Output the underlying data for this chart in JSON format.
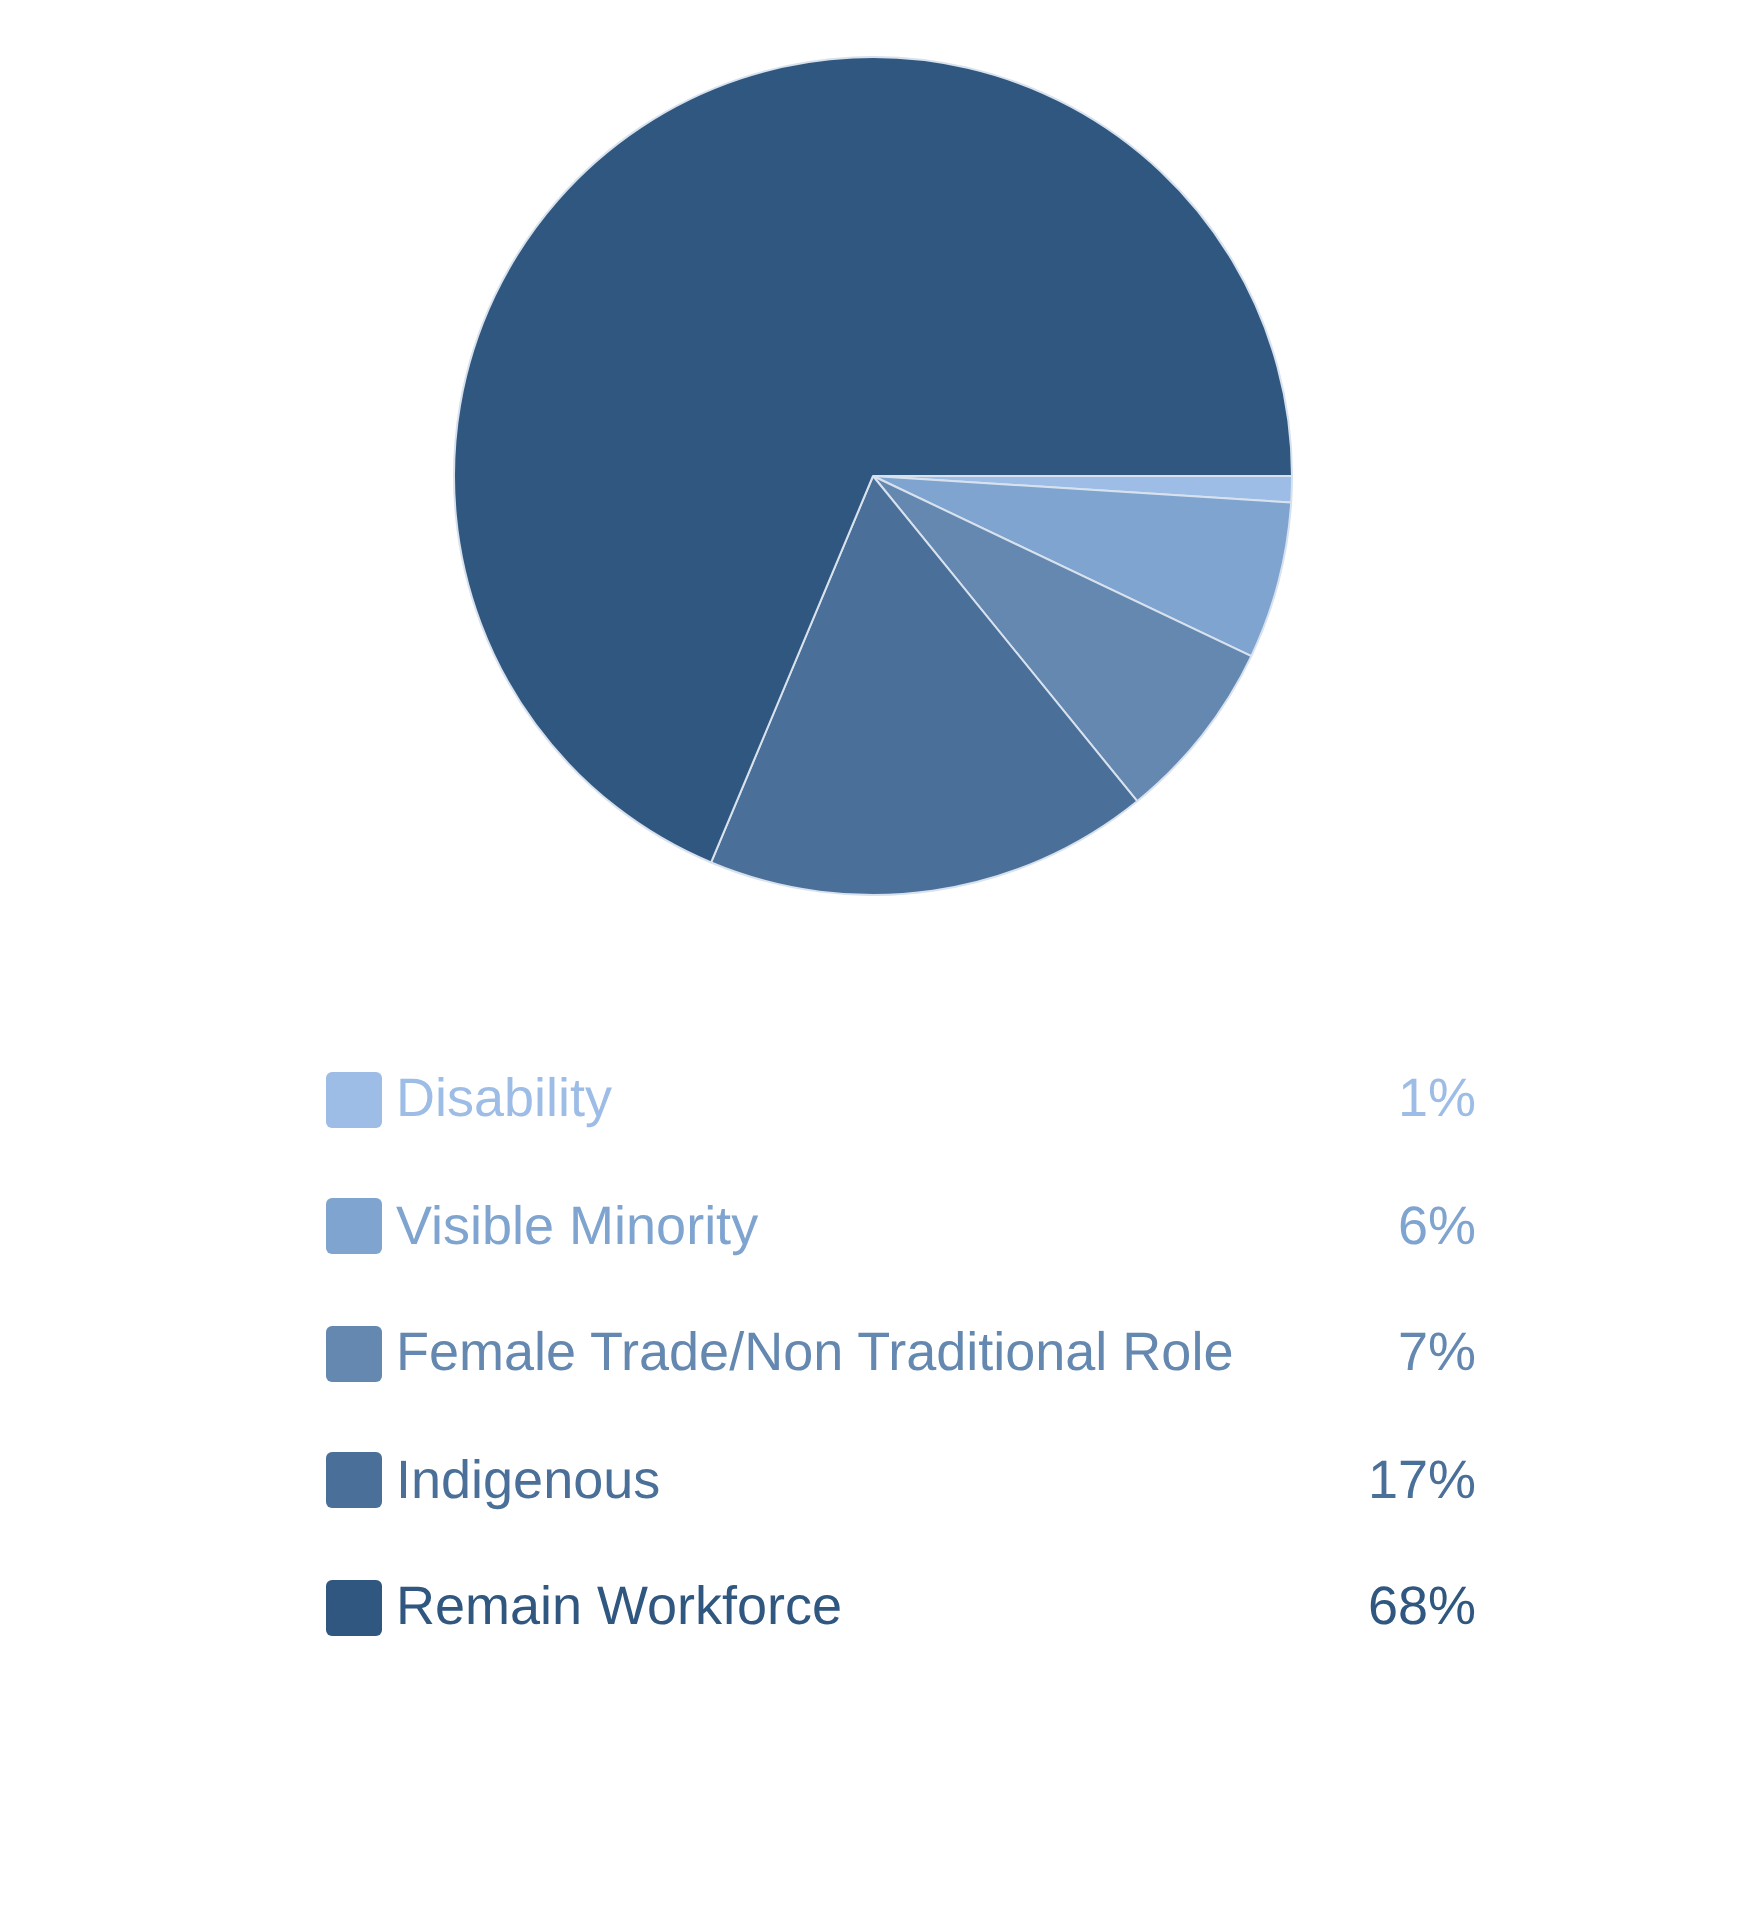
{
  "chart_data": {
    "type": "pie",
    "categories": [
      "Disability",
      "Visible Minority",
      "Female Trade/Non Traditional Role",
      "Indigenous",
      "Remain Workforce"
    ],
    "values": [
      1,
      6,
      7,
      17,
      68
    ],
    "value_labels": [
      "1%",
      "6%",
      "7%",
      "17%",
      "68%"
    ],
    "colors": [
      "#9dbde6",
      "#7ea4cf",
      "#6588b0",
      "#4a6f98",
      "#30577f"
    ],
    "legend": "bottom"
  }
}
